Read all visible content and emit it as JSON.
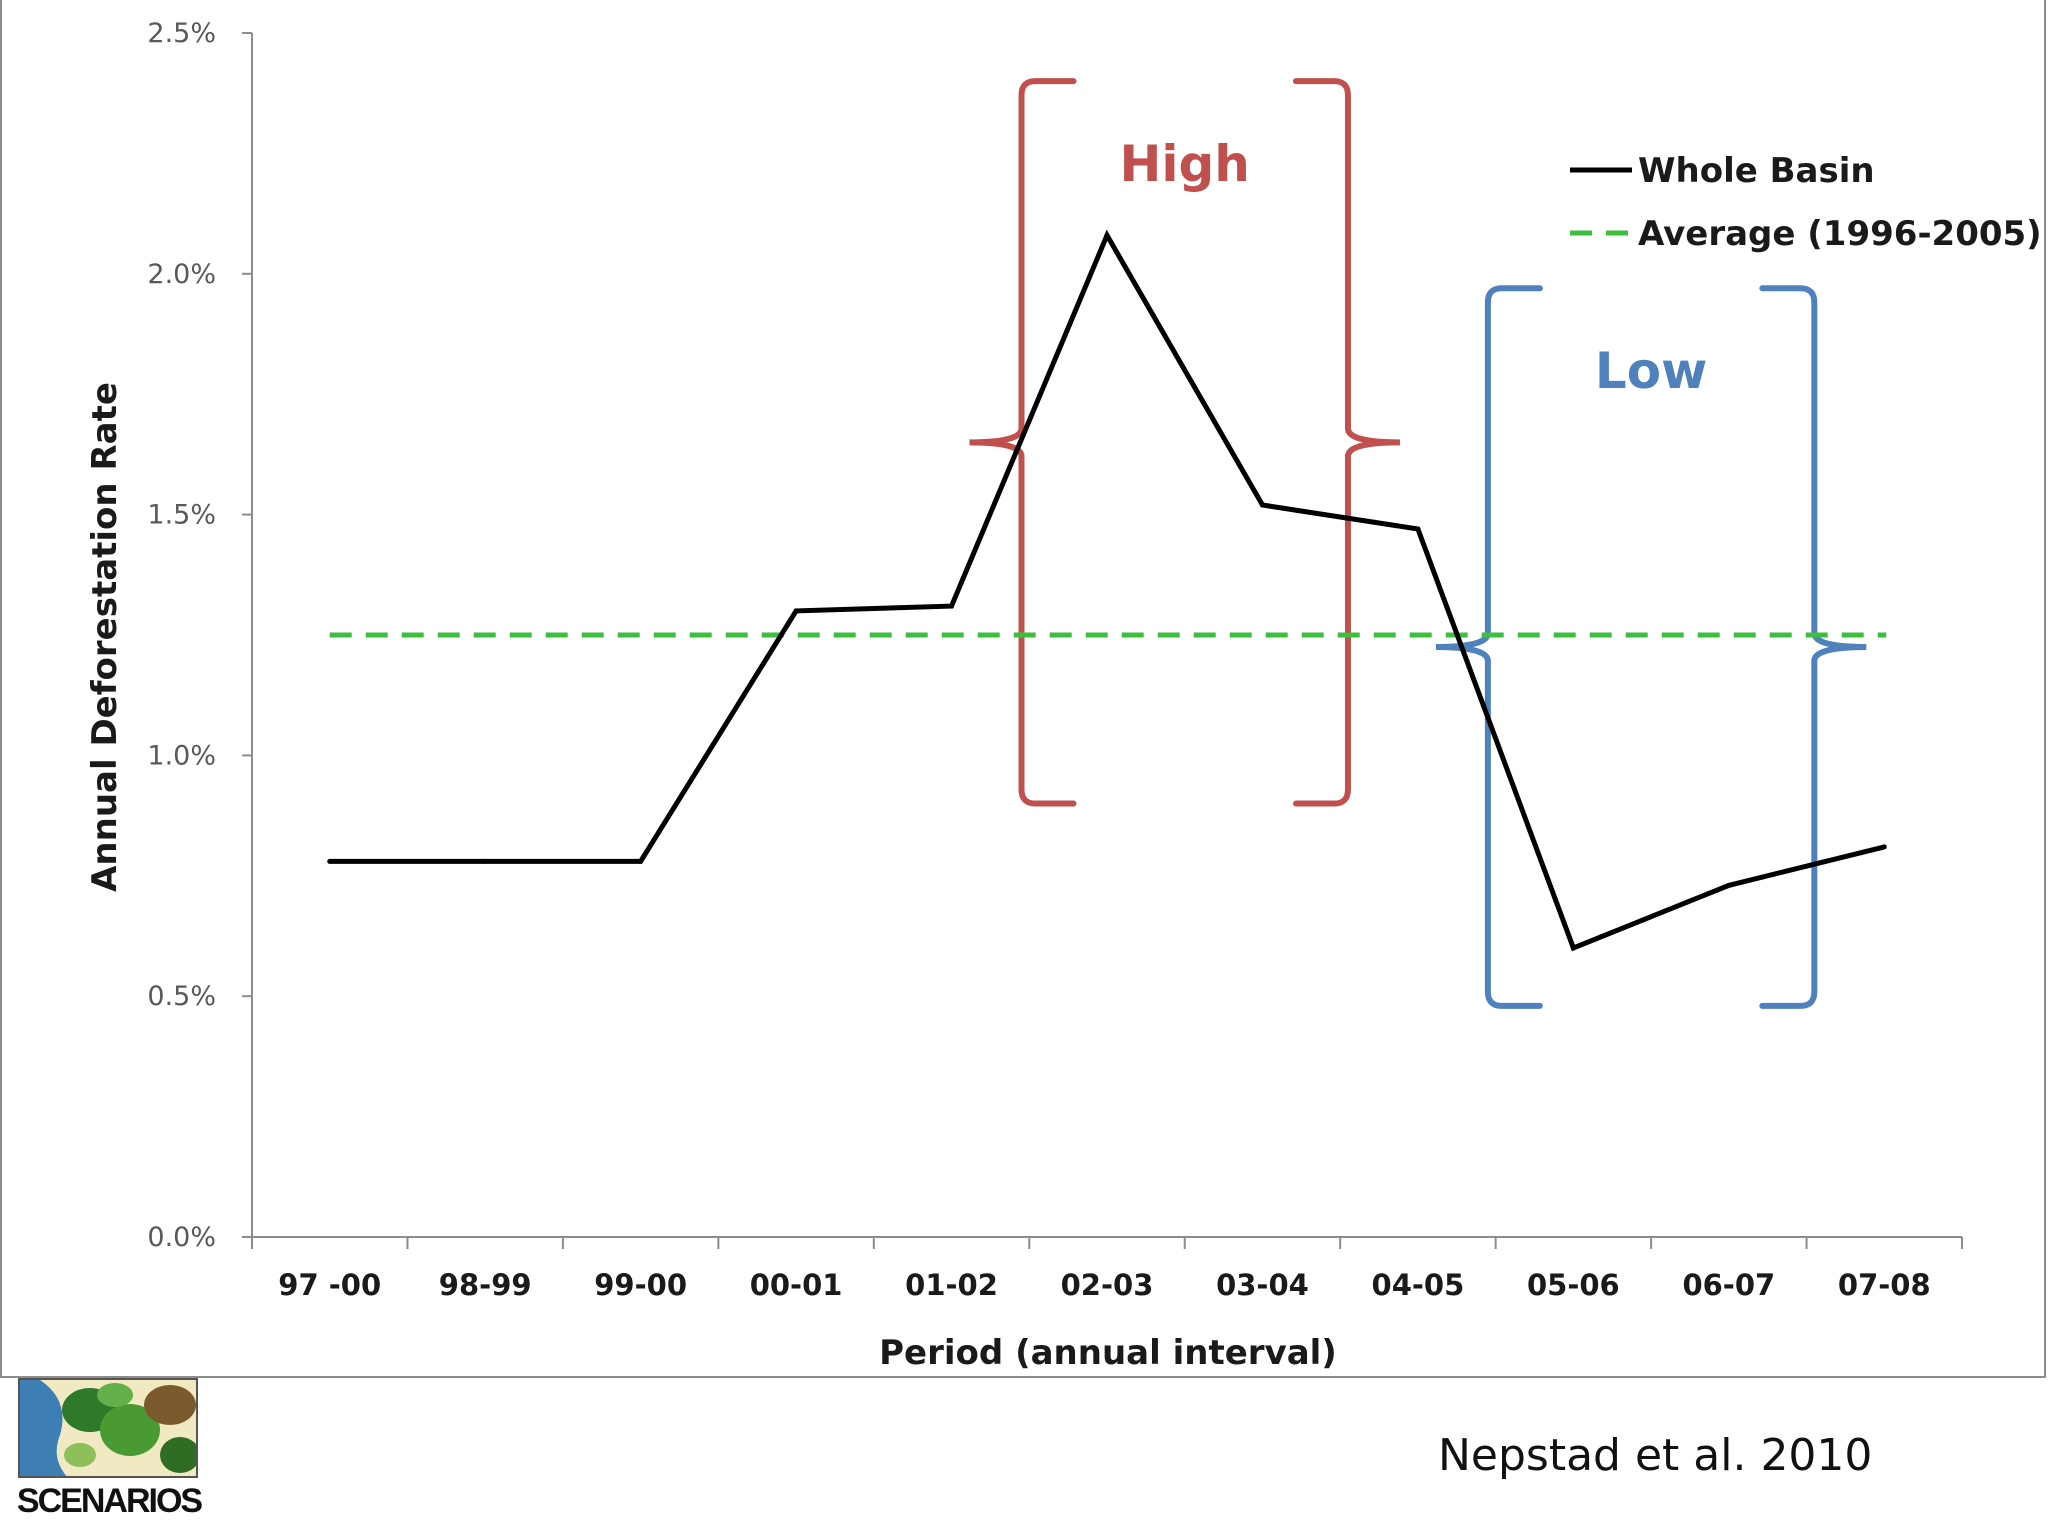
{
  "chart_data": {
    "type": "line",
    "xlabel": "Period (annual interval)",
    "ylabel": "Annual Deforestation Rate",
    "categories": [
      "97 -00",
      "98-99",
      "99-00",
      "00-01",
      "01-02",
      "02-03",
      "03-04",
      "04-05",
      "05-06",
      "06-07",
      "07-08"
    ],
    "ylim": [
      0,
      2.5
    ],
    "yticks": [
      "0.0%",
      "0.5%",
      "1.0%",
      "1.5%",
      "2.0%",
      "2.5%"
    ],
    "series": [
      {
        "name": "Whole Basin",
        "values": [
          0.78,
          0.78,
          0.78,
          1.3,
          1.31,
          2.08,
          1.52,
          1.47,
          0.6,
          0.73,
          0.81
        ],
        "color": "#000000"
      }
    ],
    "reference_line": {
      "name": "Average (1996-2005)",
      "value": 1.25,
      "color": "#3cbf3c",
      "style": "dashed"
    },
    "annotations": [
      {
        "label": "High",
        "color": "#c0504d",
        "span": [
          "02-03",
          "03-04"
        ],
        "range": [
          0.9,
          2.4
        ]
      },
      {
        "label": "Low",
        "color": "#4f81bd",
        "span": [
          "05-06",
          "06-07"
        ],
        "range": [
          0.48,
          1.97
        ]
      }
    ],
    "grid": false,
    "legend": "top-right"
  },
  "footer": {
    "logo_text": "SCENARIOS",
    "citation": "Nepstad et al. 2010"
  }
}
